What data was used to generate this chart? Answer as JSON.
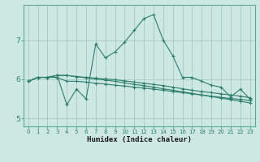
{
  "xlabel": "Humidex (Indice chaleur)",
  "ylabel": "",
  "xlim": [
    -0.5,
    23.5
  ],
  "ylim": [
    4.8,
    7.9
  ],
  "yticks": [
    5,
    6,
    7
  ],
  "xticks": [
    0,
    1,
    2,
    3,
    4,
    5,
    6,
    7,
    8,
    9,
    10,
    11,
    12,
    13,
    14,
    15,
    16,
    17,
    18,
    19,
    20,
    21,
    22,
    23
  ],
  "bg_color": "#cde8e2",
  "line_color": "#2e7d6e",
  "grid_color": "#aacfc7",
  "series": [
    [
      5.95,
      6.05,
      6.05,
      6.1,
      5.35,
      5.75,
      5.5,
      6.9,
      6.55,
      6.7,
      6.95,
      7.25,
      7.55,
      7.65,
      7.0,
      6.6,
      6.05,
      6.05,
      5.95,
      5.85,
      5.8,
      5.55,
      5.75,
      5.5
    ],
    [
      5.95,
      6.05,
      6.05,
      6.05,
      5.95,
      5.95,
      5.93,
      5.9,
      5.88,
      5.85,
      5.83,
      5.8,
      5.78,
      5.75,
      5.72,
      5.69,
      5.66,
      5.63,
      5.6,
      5.57,
      5.54,
      5.51,
      5.49,
      5.46
    ],
    [
      5.95,
      6.05,
      6.05,
      6.1,
      6.1,
      6.07,
      6.05,
      6.03,
      6.01,
      5.99,
      5.96,
      5.93,
      5.9,
      5.87,
      5.84,
      5.8,
      5.76,
      5.72,
      5.69,
      5.66,
      5.63,
      5.6,
      5.57,
      5.53
    ],
    [
      5.95,
      6.05,
      6.05,
      6.1,
      6.1,
      6.07,
      6.04,
      6.01,
      5.98,
      5.95,
      5.91,
      5.87,
      5.84,
      5.8,
      5.76,
      5.72,
      5.68,
      5.64,
      5.6,
      5.56,
      5.52,
      5.48,
      5.44,
      5.4
    ]
  ]
}
